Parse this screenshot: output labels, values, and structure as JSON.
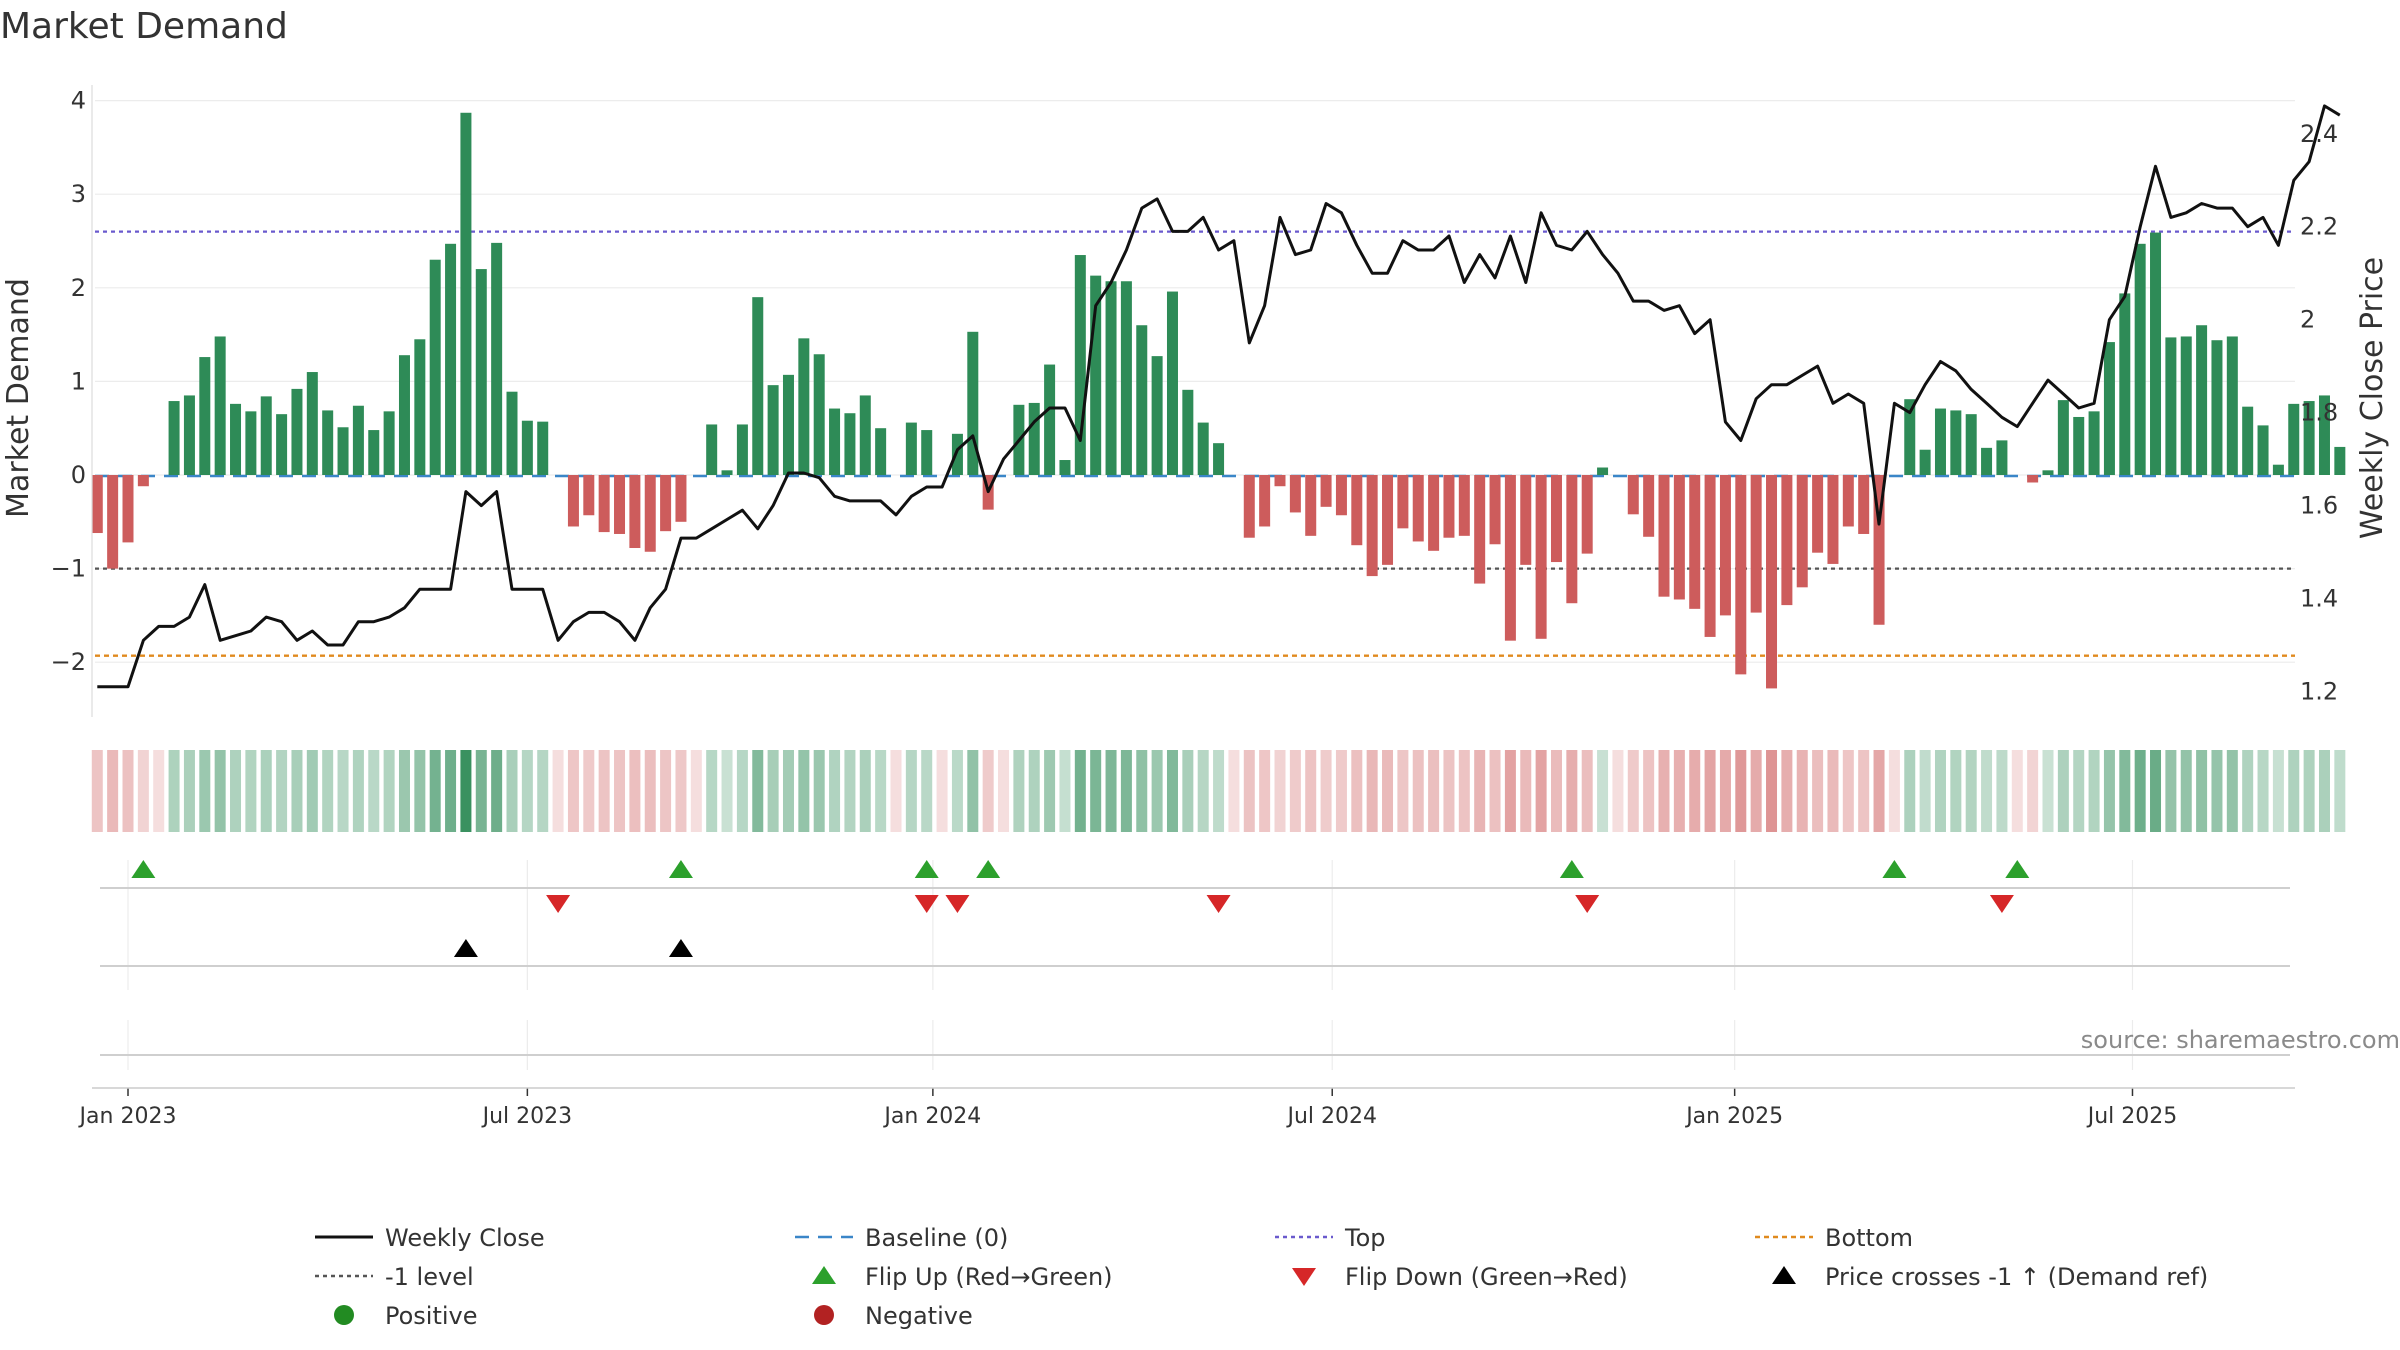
{
  "chart_data": {
    "type": "bar",
    "title": "Market Demand",
    "ylabel": "Market Demand",
    "y2label": "Weekly Close Price",
    "ylim": [
      -2.6,
      4.1
    ],
    "y2lim": [
      1.145,
      2.505
    ],
    "yticks": [
      -2,
      -1,
      0,
      1,
      2,
      3,
      4
    ],
    "y2ticks": [
      "1.2",
      "1.4",
      "1.6",
      "1.8",
      "2",
      "2.2",
      "2.4"
    ],
    "xticks": [
      {
        "label": "Jan 2023",
        "week": 0
      },
      {
        "label": "Jul 2023",
        "week": 26
      },
      {
        "label": "Jan 2024",
        "week": 52.4
      },
      {
        "label": "Jul 2024",
        "week": 78.4
      },
      {
        "label": "Jan 2025",
        "week": 104.6
      },
      {
        "label": "Jul 2025",
        "week": 130.5
      }
    ],
    "x_start_week": -2,
    "levels": {
      "top": 2.6,
      "minus_one": -1,
      "bottom": -1.93,
      "baseline": 0
    },
    "demand": [
      -0.62,
      -1.0,
      -0.72,
      -0.12,
      0.0,
      0.79,
      0.85,
      1.26,
      1.48,
      0.76,
      0.68,
      0.84,
      0.65,
      0.92,
      1.1,
      0.69,
      0.51,
      0.74,
      0.48,
      0.68,
      1.28,
      1.45,
      2.3,
      2.47,
      3.87,
      2.2,
      2.48,
      0.89,
      0.58,
      0.57,
      0.0,
      -0.55,
      -0.43,
      -0.61,
      -0.63,
      -0.78,
      -0.82,
      -0.6,
      -0.5,
      0.0,
      0.54,
      0.05,
      0.54,
      1.9,
      0.96,
      1.07,
      1.46,
      1.29,
      0.71,
      0.66,
      0.85,
      0.5,
      0.0,
      0.56,
      0.48,
      0.0,
      0.44,
      1.53,
      -0.37,
      0.0,
      0.75,
      0.77,
      1.18,
      0.16,
      2.35,
      2.13,
      2.07,
      2.07,
      1.6,
      1.27,
      1.96,
      0.91,
      0.56,
      0.34,
      0.0,
      -0.67,
      -0.55,
      -0.12,
      -0.4,
      -0.65,
      -0.34,
      -0.43,
      -0.75,
      -1.08,
      -0.96,
      -0.57,
      -0.71,
      -0.81,
      -0.67,
      -0.65,
      -1.16,
      -0.74,
      -1.77,
      -0.96,
      -1.75,
      -0.93,
      -1.37,
      -0.84,
      0.08,
      0.0,
      -0.42,
      -0.66,
      -1.3,
      -1.33,
      -1.43,
      -1.73,
      -1.5,
      -2.13,
      -1.47,
      -2.28,
      -1.39,
      -1.2,
      -0.83,
      -0.95,
      -0.55,
      -0.63,
      -1.6,
      0.0,
      0.81,
      0.27,
      0.71,
      0.69,
      0.65,
      0.29,
      0.37,
      0.0,
      -0.08,
      0.05,
      0.8,
      0.62,
      0.68,
      1.42,
      1.94,
      2.47,
      2.59,
      1.47,
      1.48,
      1.6,
      1.44,
      1.48,
      0.73,
      0.53,
      0.11,
      0.76,
      0.79,
      0.85,
      0.3
    ],
    "price": [
      1.21,
      1.21,
      1.21,
      1.31,
      1.34,
      1.34,
      1.36,
      1.43,
      1.31,
      1.32,
      1.33,
      1.36,
      1.35,
      1.31,
      1.33,
      1.3,
      1.3,
      1.35,
      1.35,
      1.36,
      1.38,
      1.42,
      1.42,
      1.42,
      1.63,
      1.6,
      1.63,
      1.42,
      1.42,
      1.42,
      1.31,
      1.35,
      1.37,
      1.37,
      1.35,
      1.31,
      1.38,
      1.42,
      1.53,
      1.53,
      1.55,
      1.57,
      1.59,
      1.55,
      1.6,
      1.67,
      1.67,
      1.66,
      1.62,
      1.61,
      1.61,
      1.61,
      1.58,
      1.62,
      1.64,
      1.64,
      1.72,
      1.75,
      1.63,
      1.7,
      1.74,
      1.78,
      1.81,
      1.81,
      1.74,
      2.03,
      2.08,
      2.15,
      2.24,
      2.26,
      2.19,
      2.19,
      2.22,
      2.15,
      2.17,
      1.95,
      2.03,
      2.22,
      2.14,
      2.15,
      2.25,
      2.23,
      2.16,
      2.1,
      2.1,
      2.17,
      2.15,
      2.15,
      2.18,
      2.08,
      2.14,
      2.09,
      2.18,
      2.08,
      2.23,
      2.16,
      2.15,
      2.19,
      2.14,
      2.1,
      2.04,
      2.04,
      2.02,
      2.03,
      1.97,
      2.0,
      1.78,
      1.74,
      1.83,
      1.86,
      1.86,
      1.88,
      1.9,
      1.82,
      1.84,
      1.82,
      1.56,
      1.82,
      1.8,
      1.86,
      1.91,
      1.89,
      1.85,
      1.82,
      1.79,
      1.77,
      1.82,
      1.87,
      1.84,
      1.81,
      1.82,
      2.0,
      2.05,
      2.2,
      2.33,
      2.22,
      2.23,
      2.25,
      2.24,
      2.24,
      2.2,
      2.22,
      2.16,
      2.3,
      2.34,
      2.46,
      2.44
    ],
    "flip_up_weeks": [
      1,
      36,
      52,
      56,
      94,
      115,
      123
    ],
    "flip_down_weeks": [
      28,
      52,
      54,
      71,
      95,
      122
    ],
    "price_cross_weeks": [
      22,
      36
    ],
    "legend": [
      {
        "label": "Weekly Close",
        "marker": "line-black"
      },
      {
        "label": "Baseline (0)",
        "marker": "dash-blue"
      },
      {
        "label": "Top",
        "marker": "dot-purple"
      },
      {
        "label": "Bottom",
        "marker": "dot-orange"
      },
      {
        "label": "-1 level",
        "marker": "dot-gray"
      },
      {
        "label": "Flip Up (Red→Green)",
        "marker": "triangle-up-green"
      },
      {
        "label": "Flip Down (Green→Red)",
        "marker": "triangle-down-red"
      },
      {
        "label": "Price crosses -1 ↑ (Demand ref)",
        "marker": "triangle-up-black"
      },
      {
        "label": "Positive",
        "marker": "circle-green"
      },
      {
        "label": "Negative",
        "marker": "circle-red"
      }
    ],
    "source": "source: sharemaestro.com",
    "colors": {
      "positive": "#2e8b57",
      "negative": "#cd5c5c",
      "price": "#111111",
      "baseline": "#3a86c8",
      "top": "#6a5acd",
      "bottom": "#e08a1e",
      "minus_one": "#555555",
      "flip_up": "#2ca02c",
      "flip_down": "#d62728",
      "cross": "#000000",
      "legend_positive": "#228b22",
      "legend_negative": "#b22222"
    }
  }
}
